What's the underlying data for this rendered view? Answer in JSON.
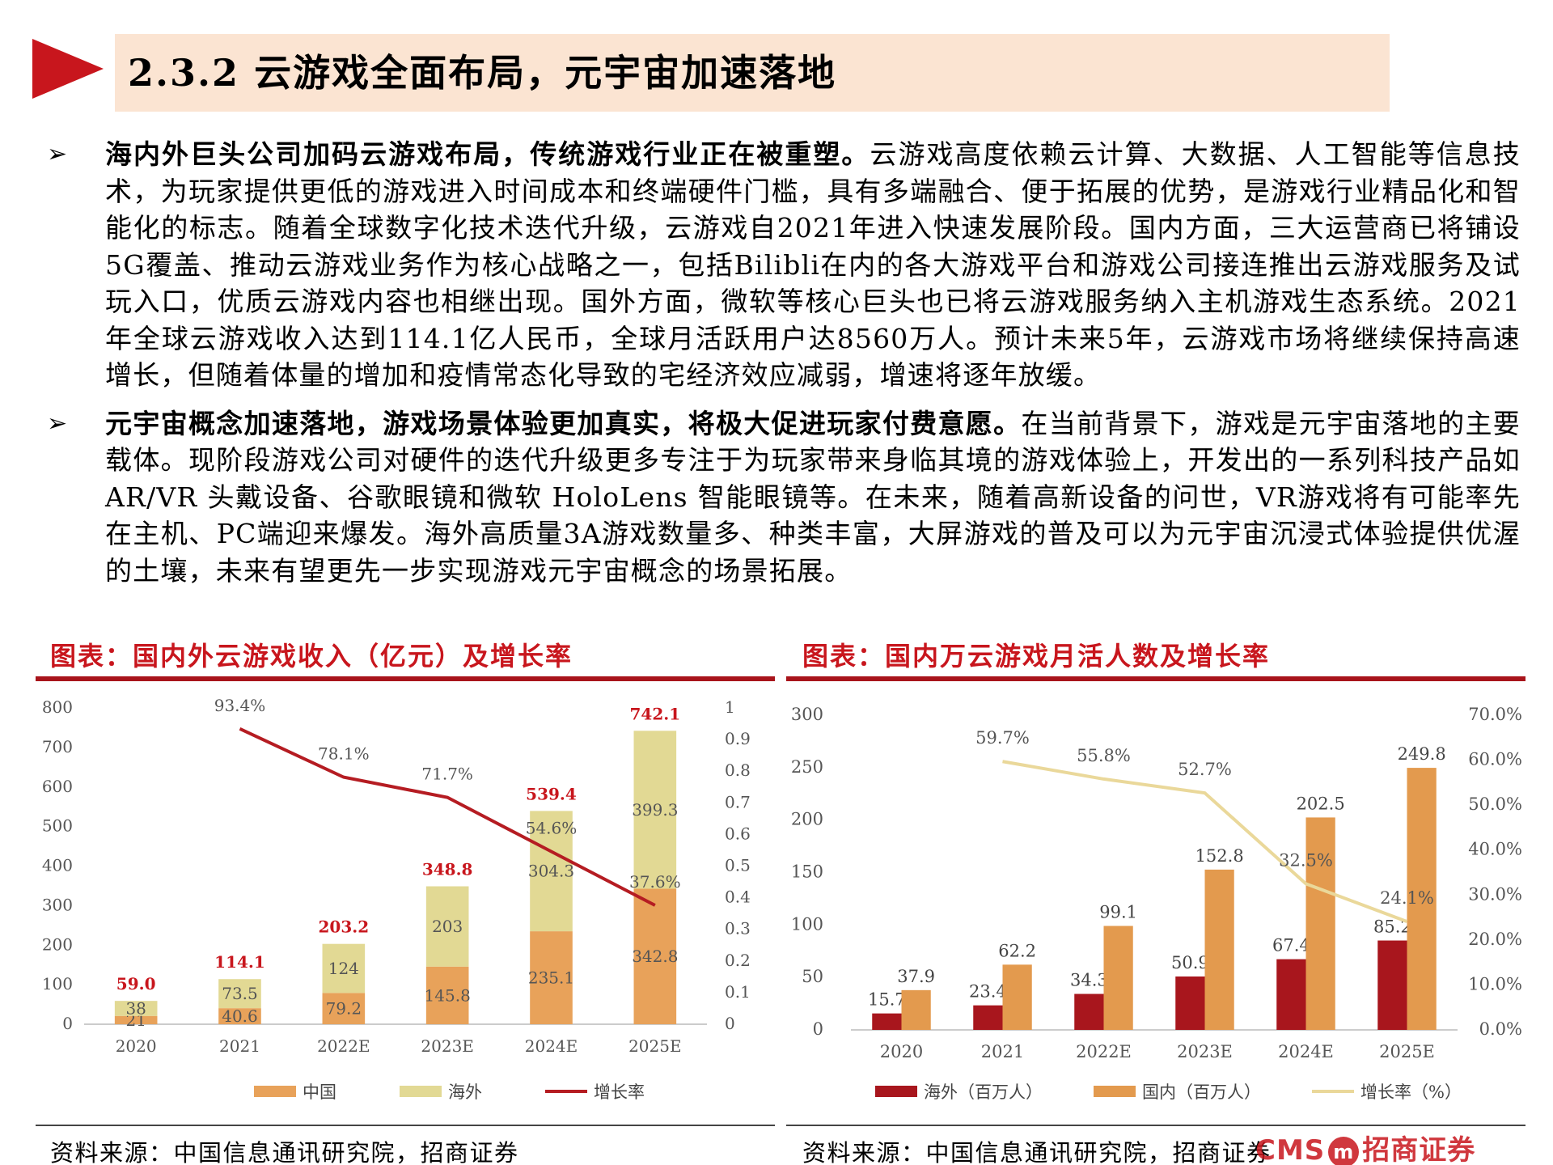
{
  "header": {
    "title": "2.3.2 云游戏全面布局，元宇宙加速落地"
  },
  "bullets": [
    {
      "marker": "➢",
      "lead": "海内外巨头公司加码云游戏布局，传统游戏行业正在被重塑。",
      "body": "云游戏高度依赖云计算、大数据、人工智能等信息技术，为玩家提供更低的游戏进入时间成本和终端硬件门槛，具有多端融合、便于拓展的优势，是游戏行业精品化和智能化的标志。随着全球数字化技术迭代升级，云游戏自2021年进入快速发展阶段。国内方面，三大运营商已将铺设5G覆盖、推动云游戏业务作为核心战略之一，包括Bilibli在内的各大游戏平台和游戏公司接连推出云游戏服务及试玩入口，优质云游戏内容也相继出现。国外方面，微软等核心巨头也已将云游戏服务纳入主机游戏生态系统。2021年全球云游戏收入达到114.1亿人民币，全球月活跃用户达8560万人。预计未来5年，云游戏市场将继续保持高速增长，但随着体量的增加和疫情常态化导致的宅经济效应减弱，增速将逐年放缓。"
    },
    {
      "marker": "➢",
      "lead": "元宇宙概念加速落地，游戏场景体验更加真实，将极大促进玩家付费意愿。",
      "body": "在当前背景下，游戏是元宇宙落地的主要载体。现阶段游戏公司对硬件的迭代升级更多专注于为玩家带来身临其境的游戏体验上，开发出的一系列科技产品如 AR/VR 头戴设备、谷歌眼镜和微软 HoloLens 智能眼镜等。在未来，随着高新设备的问世，VR游戏将有可能率先在主机、PC端迎来爆发。海外高质量3A游戏数量多、种类丰富，大屏游戏的普及可以为元宇宙沉浸式体验提供优渥的土壤，未来有望更先一步实现游戏元宇宙概念的场景拓展。"
    }
  ],
  "figures": {
    "left_title": "图表：国内外云游戏收入（亿元）及增长率",
    "right_title": "图表：国内万云游戏月活人数及增长率",
    "left_source": "资料来源：中国信息通讯研究院，招商证券",
    "right_source": "资料来源：中国信息通讯研究院，招商证券"
  },
  "logo": {
    "prefix": "CMS",
    "badge": "m",
    "name": "招商证券"
  },
  "chart_data": [
    {
      "type": "bar",
      "stacked": true,
      "categories": [
        "2020",
        "2021",
        "2022E",
        "2023E",
        "2024E",
        "2025E"
      ],
      "series": [
        {
          "name": "中国",
          "values": [
            21,
            40.6,
            79.2,
            145.8,
            235.1,
            342.8
          ],
          "labels": [
            "21",
            "40.6",
            "79.2",
            "145.8",
            "235.1",
            "342.8"
          ],
          "color": "#e8a25a"
        },
        {
          "name": "海外",
          "values": [
            38,
            73.5,
            124,
            203,
            304.3,
            399.3
          ],
          "labels": [
            "38",
            "73.5",
            "124",
            "203",
            "304.3",
            "399.3"
          ],
          "color": "#e2d994"
        }
      ],
      "totals": [
        "59.0",
        "114.1",
        "203.2",
        "348.8",
        "539.4",
        "742.1"
      ],
      "line": {
        "name": "增长率",
        "values": [
          null,
          0.934,
          0.781,
          0.717,
          0.546,
          0.376
        ],
        "labels": [
          "",
          "93.4%",
          "78.1%",
          "71.7%",
          "54.6%",
          "37.6%"
        ],
        "color": "#b51c22"
      },
      "ylim": [
        0,
        800
      ],
      "yticks": [
        "0",
        "100",
        "200",
        "300",
        "400",
        "500",
        "600",
        "700",
        "800"
      ],
      "y2lim": [
        0,
        1
      ],
      "y2ticks": [
        "0",
        "0.1",
        "0.2",
        "0.3",
        "0.4",
        "0.5",
        "0.6",
        "0.7",
        "0.8",
        "0.9",
        "1"
      ],
      "legend": "bottom"
    },
    {
      "type": "bar",
      "stacked": false,
      "categories": [
        "2020",
        "2021",
        "2022E",
        "2023E",
        "2024E",
        "2025E"
      ],
      "series": [
        {
          "name": "海外（百万人）",
          "values": [
            15.7,
            23.4,
            34.3,
            50.9,
            67.4,
            85.2
          ],
          "labels": [
            "15.7",
            "23.4",
            "34.3",
            "50.9",
            "67.4",
            "85.2"
          ],
          "color": "#a8161d"
        },
        {
          "name": "国内（百万人）",
          "values": [
            37.9,
            62.2,
            99.1,
            152.8,
            202.5,
            249.8
          ],
          "labels": [
            "37.9",
            "62.2",
            "99.1",
            "152.8",
            "202.5",
            "249.8"
          ],
          "color": "#e39a4e"
        }
      ],
      "line": {
        "name": "增长率（%）",
        "values": [
          null,
          0.597,
          0.558,
          0.527,
          0.325,
          0.241
        ],
        "labels": [
          "",
          "59.7%",
          "55.8%",
          "52.7%",
          "32.5%",
          "24.1%"
        ],
        "color": "#ead89a"
      },
      "ylim": [
        0,
        300
      ],
      "yticks": [
        "0",
        "50",
        "100",
        "150",
        "200",
        "250",
        "300"
      ],
      "y2lim": [
        0,
        0.7
      ],
      "y2ticks": [
        "0.0%",
        "10.0%",
        "20.0%",
        "30.0%",
        "40.0%",
        "50.0%",
        "60.0%",
        "70.0%"
      ],
      "legend": "bottom"
    }
  ]
}
